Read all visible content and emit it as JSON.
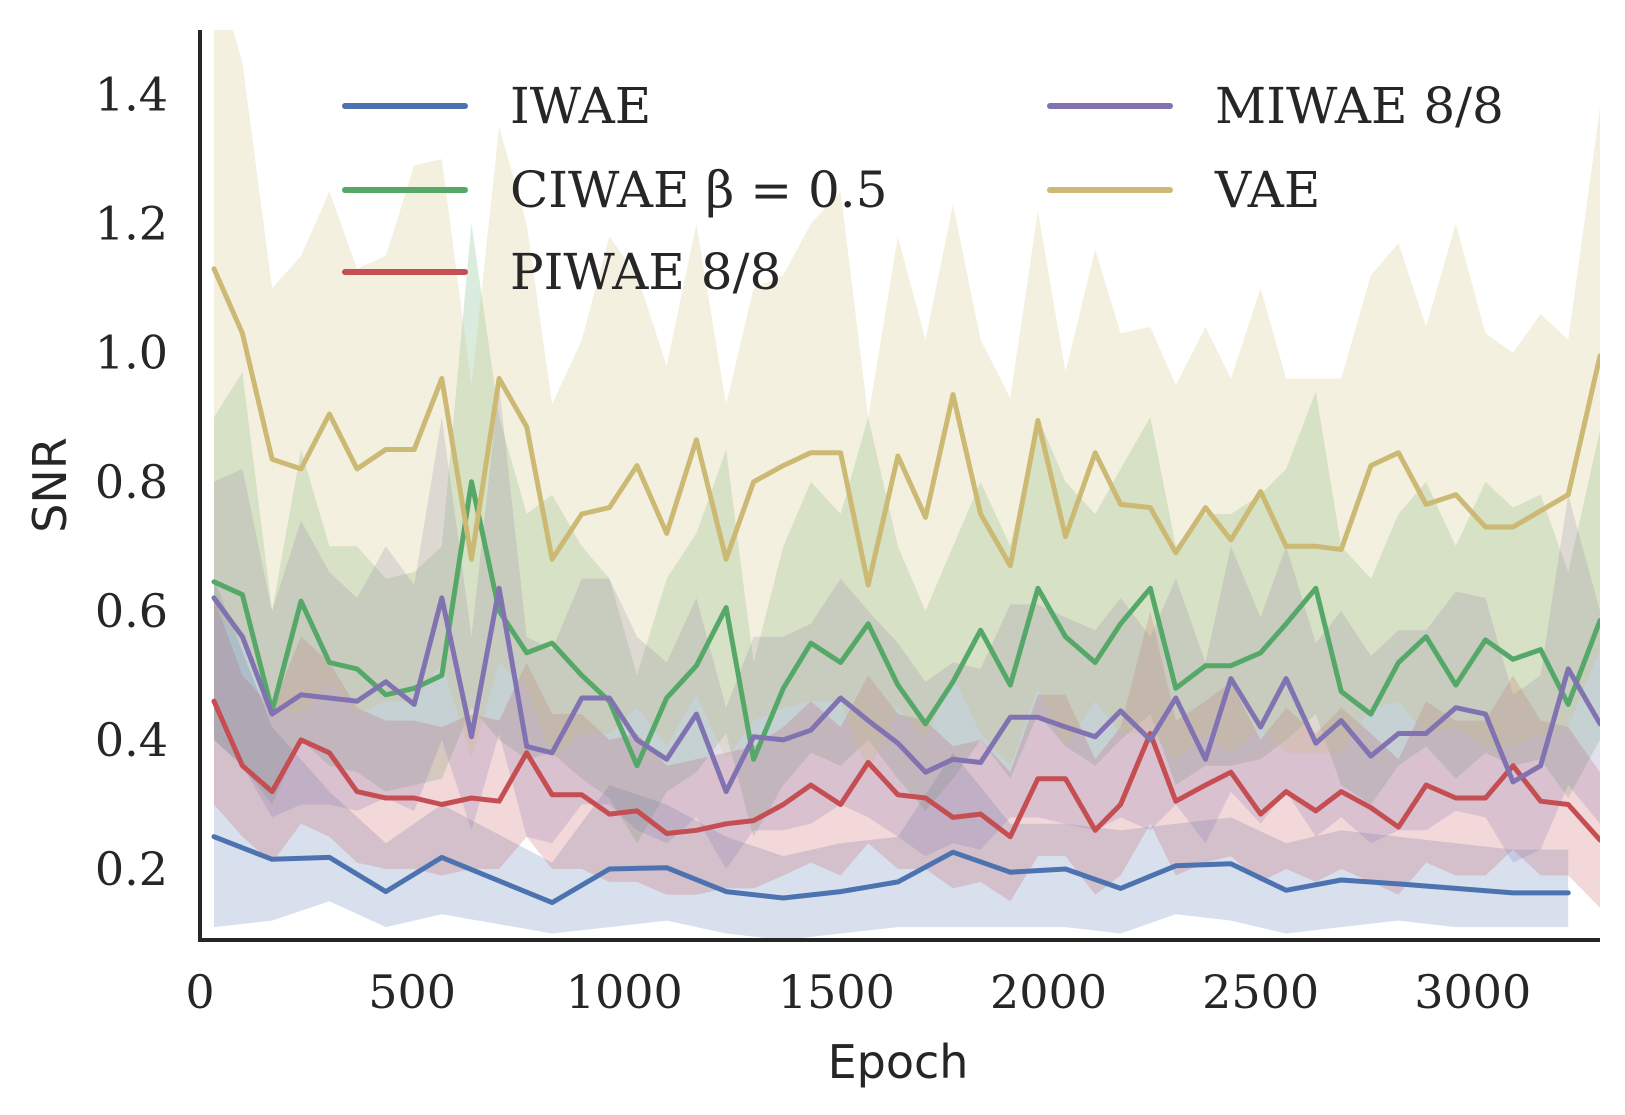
{
  "chart_data": {
    "type": "line",
    "title": "",
    "xlabel": "Epoch",
    "ylabel": "SNR",
    "xlim": [
      0,
      3300
    ],
    "ylim": [
      0.09,
      1.5
    ],
    "x_ticks": [
      0,
      500,
      1000,
      1500,
      2000,
      2500,
      3000
    ],
    "y_ticks": [
      0.2,
      0.4,
      0.6,
      0.8,
      1.0,
      1.2,
      1.4
    ],
    "x_tick_labels": [
      "0",
      "500",
      "1000",
      "1500",
      "2000",
      "2500",
      "3000"
    ],
    "y_tick_labels": [
      "0.2",
      "0.4",
      "0.6",
      "0.8",
      "1.0",
      "1.2",
      "1.4"
    ],
    "grid": false,
    "legend_placement": "top, two columns",
    "series": [
      {
        "name": "IWAE",
        "color": "#4c72b0",
        "x": [
          33,
          170,
          305,
          438,
          570,
          830,
          965,
          1100,
          1240,
          1375,
          1510,
          1645,
          1775,
          1910,
          2040,
          2170,
          2300,
          2430,
          2560,
          2690,
          2825,
          2960,
          3095,
          3225
        ],
        "values": [
          0.25,
          0.215,
          0.218,
          0.165,
          0.218,
          0.148,
          0.2,
          0.202,
          0.165,
          0.155,
          0.165,
          0.18,
          0.226,
          0.195,
          0.2,
          0.17,
          0.205,
          0.208,
          0.167,
          0.183,
          0.177,
          0.17,
          0.163,
          0.163
        ],
        "upper": [
          0.65,
          0.42,
          0.32,
          0.24,
          0.3,
          0.21,
          0.33,
          0.3,
          0.25,
          0.22,
          0.24,
          0.25,
          0.38,
          0.27,
          0.27,
          0.26,
          0.27,
          0.28,
          0.24,
          0.26,
          0.25,
          0.24,
          0.23,
          0.23
        ],
        "lower": [
          0.11,
          0.12,
          0.15,
          0.11,
          0.13,
          0.1,
          0.11,
          0.12,
          0.1,
          0.09,
          0.1,
          0.11,
          0.11,
          0.11,
          0.11,
          0.1,
          0.13,
          0.12,
          0.1,
          0.11,
          0.12,
          0.11,
          0.11,
          0.11
        ]
      },
      {
        "name": "CIWAE β = 0.5",
        "color": "#55a868",
        "x": [
          33,
          100,
          170,
          238,
          305,
          370,
          438,
          505,
          570,
          640,
          705,
          770,
          830,
          900,
          965,
          1030,
          1100,
          1170,
          1240,
          1305,
          1375,
          1440,
          1510,
          1575,
          1645,
          1710,
          1775,
          1840,
          1910,
          1975,
          2040,
          2110,
          2170,
          2240,
          2300,
          2370,
          2430,
          2500,
          2560,
          2630,
          2690,
          2760,
          2825,
          2890,
          2960,
          3030,
          3095,
          3160,
          3225,
          3300
        ],
        "values": [
          0.645,
          0.625,
          0.445,
          0.615,
          0.52,
          0.51,
          0.47,
          0.48,
          0.5,
          0.8,
          0.6,
          0.535,
          0.55,
          0.5,
          0.46,
          0.36,
          0.465,
          0.515,
          0.605,
          0.37,
          0.48,
          0.55,
          0.52,
          0.58,
          0.485,
          0.425,
          0.49,
          0.57,
          0.485,
          0.635,
          0.56,
          0.52,
          0.58,
          0.635,
          0.48,
          0.515,
          0.515,
          0.535,
          0.58,
          0.635,
          0.475,
          0.44,
          0.52,
          0.56,
          0.485,
          0.555,
          0.525,
          0.54,
          0.455,
          0.585
        ],
        "upper": [
          0.9,
          0.97,
          0.6,
          0.85,
          0.7,
          0.7,
          0.65,
          0.66,
          0.7,
          1.2,
          0.9,
          0.75,
          0.78,
          0.7,
          0.65,
          0.5,
          0.65,
          0.72,
          0.85,
          0.52,
          0.7,
          0.8,
          0.75,
          0.9,
          0.7,
          0.6,
          0.7,
          0.8,
          0.7,
          0.9,
          0.8,
          0.75,
          0.82,
          0.9,
          0.7,
          0.75,
          0.75,
          0.78,
          0.82,
          0.94,
          0.7,
          0.65,
          0.75,
          0.8,
          0.7,
          0.8,
          0.76,
          0.78,
          0.66,
          0.88
        ],
        "lower": [
          0.4,
          0.36,
          0.3,
          0.4,
          0.36,
          0.35,
          0.32,
          0.33,
          0.34,
          0.45,
          0.4,
          0.37,
          0.38,
          0.34,
          0.31,
          0.24,
          0.32,
          0.35,
          0.41,
          0.25,
          0.33,
          0.38,
          0.36,
          0.4,
          0.34,
          0.29,
          0.34,
          0.4,
          0.34,
          0.44,
          0.39,
          0.36,
          0.4,
          0.44,
          0.33,
          0.36,
          0.36,
          0.37,
          0.4,
          0.44,
          0.33,
          0.3,
          0.36,
          0.39,
          0.34,
          0.38,
          0.36,
          0.37,
          0.31,
          0.4
        ]
      },
      {
        "name": "PIWAE 8/8",
        "color": "#c44e52",
        "x": [
          33,
          100,
          170,
          238,
          305,
          370,
          438,
          505,
          570,
          640,
          705,
          770,
          830,
          900,
          965,
          1030,
          1100,
          1170,
          1240,
          1305,
          1375,
          1440,
          1510,
          1575,
          1645,
          1710,
          1775,
          1840,
          1910,
          1975,
          2040,
          2110,
          2170,
          2240,
          2300,
          2370,
          2430,
          2500,
          2560,
          2630,
          2690,
          2760,
          2825,
          2890,
          2960,
          3030,
          3095,
          3160,
          3225,
          3300
        ],
        "values": [
          0.46,
          0.36,
          0.32,
          0.4,
          0.38,
          0.32,
          0.31,
          0.31,
          0.3,
          0.31,
          0.305,
          0.38,
          0.315,
          0.315,
          0.285,
          0.29,
          0.255,
          0.26,
          0.27,
          0.275,
          0.3,
          0.33,
          0.3,
          0.365,
          0.315,
          0.31,
          0.28,
          0.285,
          0.25,
          0.34,
          0.34,
          0.26,
          0.3,
          0.41,
          0.305,
          0.33,
          0.35,
          0.285,
          0.32,
          0.29,
          0.32,
          0.295,
          0.265,
          0.33,
          0.31,
          0.31,
          0.36,
          0.305,
          0.3,
          0.245
        ],
        "upper": [
          0.62,
          0.5,
          0.45,
          0.56,
          0.52,
          0.45,
          0.43,
          0.43,
          0.42,
          0.44,
          0.43,
          0.52,
          0.44,
          0.44,
          0.4,
          0.41,
          0.36,
          0.37,
          0.38,
          0.39,
          0.42,
          0.46,
          0.42,
          0.5,
          0.44,
          0.43,
          0.39,
          0.4,
          0.35,
          0.47,
          0.47,
          0.37,
          0.42,
          0.6,
          0.43,
          0.46,
          0.49,
          0.4,
          0.45,
          0.41,
          0.45,
          0.41,
          0.37,
          0.46,
          0.43,
          0.43,
          0.5,
          0.43,
          0.42,
          0.35
        ],
        "lower": [
          0.3,
          0.25,
          0.21,
          0.27,
          0.25,
          0.21,
          0.2,
          0.2,
          0.19,
          0.2,
          0.2,
          0.25,
          0.2,
          0.2,
          0.18,
          0.18,
          0.16,
          0.16,
          0.17,
          0.17,
          0.19,
          0.21,
          0.19,
          0.24,
          0.2,
          0.2,
          0.17,
          0.18,
          0.15,
          0.22,
          0.22,
          0.16,
          0.19,
          0.27,
          0.19,
          0.21,
          0.22,
          0.18,
          0.2,
          0.18,
          0.2,
          0.18,
          0.16,
          0.21,
          0.19,
          0.19,
          0.23,
          0.19,
          0.19,
          0.14
        ]
      },
      {
        "name": "MIWAE 8/8",
        "color": "#8172b2",
        "x": [
          33,
          100,
          170,
          238,
          305,
          370,
          438,
          505,
          570,
          640,
          705,
          770,
          830,
          900,
          965,
          1030,
          1100,
          1170,
          1240,
          1305,
          1375,
          1440,
          1510,
          1575,
          1645,
          1710,
          1775,
          1840,
          1910,
          1975,
          2040,
          2110,
          2170,
          2240,
          2300,
          2370,
          2430,
          2500,
          2560,
          2630,
          2690,
          2760,
          2825,
          2890,
          2960,
          3030,
          3095,
          3160,
          3225,
          3300
        ],
        "values": [
          0.62,
          0.56,
          0.44,
          0.47,
          0.465,
          0.46,
          0.49,
          0.455,
          0.62,
          0.405,
          0.635,
          0.39,
          0.38,
          0.465,
          0.465,
          0.4,
          0.37,
          0.44,
          0.32,
          0.405,
          0.4,
          0.415,
          0.465,
          0.43,
          0.395,
          0.35,
          0.37,
          0.365,
          0.435,
          0.435,
          0.42,
          0.405,
          0.445,
          0.4,
          0.465,
          0.37,
          0.495,
          0.42,
          0.495,
          0.395,
          0.43,
          0.375,
          0.41,
          0.41,
          0.45,
          0.44,
          0.335,
          0.36,
          0.51,
          0.425
        ],
        "upper": [
          0.8,
          0.82,
          0.6,
          0.74,
          0.66,
          0.62,
          0.7,
          0.64,
          0.9,
          0.56,
          0.95,
          0.56,
          0.54,
          0.65,
          0.65,
          0.56,
          0.52,
          0.62,
          0.45,
          0.56,
          0.56,
          0.58,
          0.65,
          0.6,
          0.55,
          0.49,
          0.52,
          0.51,
          0.61,
          0.61,
          0.59,
          0.57,
          0.62,
          0.56,
          0.65,
          0.52,
          0.7,
          0.59,
          0.7,
          0.55,
          0.6,
          0.53,
          0.57,
          0.57,
          0.63,
          0.62,
          0.47,
          0.5,
          0.78,
          0.6
        ],
        "lower": [
          0.4,
          0.36,
          0.28,
          0.3,
          0.3,
          0.29,
          0.31,
          0.29,
          0.4,
          0.26,
          0.41,
          0.25,
          0.24,
          0.3,
          0.3,
          0.26,
          0.24,
          0.28,
          0.2,
          0.26,
          0.26,
          0.27,
          0.3,
          0.28,
          0.25,
          0.22,
          0.24,
          0.23,
          0.28,
          0.28,
          0.27,
          0.26,
          0.28,
          0.26,
          0.3,
          0.24,
          0.32,
          0.27,
          0.32,
          0.25,
          0.28,
          0.24,
          0.26,
          0.26,
          0.29,
          0.28,
          0.21,
          0.23,
          0.33,
          0.27
        ]
      },
      {
        "name": "VAE",
        "color": "#ccb974",
        "x": [
          33,
          100,
          170,
          238,
          305,
          370,
          438,
          505,
          570,
          640,
          705,
          770,
          830,
          900,
          965,
          1030,
          1100,
          1170,
          1240,
          1305,
          1375,
          1440,
          1510,
          1575,
          1645,
          1710,
          1775,
          1840,
          1910,
          1975,
          2040,
          2110,
          2170,
          2240,
          2300,
          2370,
          2430,
          2500,
          2560,
          2630,
          2690,
          2760,
          2825,
          2890,
          2960,
          3030,
          3095,
          3160,
          3225,
          3300
        ],
        "values": [
          1.13,
          1.03,
          0.835,
          0.82,
          0.905,
          0.82,
          0.85,
          0.85,
          0.96,
          0.68,
          0.96,
          0.885,
          0.68,
          0.75,
          0.76,
          0.825,
          0.72,
          0.865,
          0.68,
          0.8,
          0.825,
          0.845,
          0.845,
          0.64,
          0.84,
          0.745,
          0.935,
          0.75,
          0.67,
          0.895,
          0.715,
          0.845,
          0.765,
          0.76,
          0.69,
          0.76,
          0.71,
          0.785,
          0.7,
          0.7,
          0.695,
          0.825,
          0.845,
          0.765,
          0.78,
          0.73,
          0.73,
          0.755,
          0.78,
          0.995
        ],
        "upper": [
          1.6,
          1.45,
          1.1,
          1.15,
          1.25,
          1.13,
          1.15,
          1.29,
          1.3,
          0.95,
          1.35,
          1.2,
          0.92,
          1.02,
          1.18,
          1.12,
          0.98,
          1.2,
          0.92,
          1.1,
          1.12,
          1.2,
          1.25,
          0.9,
          1.18,
          1.02,
          1.23,
          1.02,
          0.93,
          1.22,
          0.97,
          1.16,
          1.03,
          1.04,
          0.95,
          1.04,
          0.96,
          1.1,
          0.96,
          0.96,
          0.96,
          1.12,
          1.17,
          1.04,
          1.2,
          1.03,
          1.0,
          1.06,
          1.02,
          1.38
        ],
        "lower": [
          0.6,
          0.55,
          0.45,
          0.44,
          0.49,
          0.44,
          0.46,
          0.46,
          0.52,
          0.37,
          0.52,
          0.48,
          0.37,
          0.41,
          0.41,
          0.45,
          0.39,
          0.47,
          0.37,
          0.43,
          0.45,
          0.46,
          0.46,
          0.35,
          0.45,
          0.4,
          0.5,
          0.41,
          0.36,
          0.48,
          0.39,
          0.46,
          0.41,
          0.41,
          0.37,
          0.41,
          0.38,
          0.42,
          0.38,
          0.38,
          0.38,
          0.45,
          0.46,
          0.41,
          0.42,
          0.39,
          0.39,
          0.41,
          0.42,
          0.54
        ]
      }
    ]
  }
}
